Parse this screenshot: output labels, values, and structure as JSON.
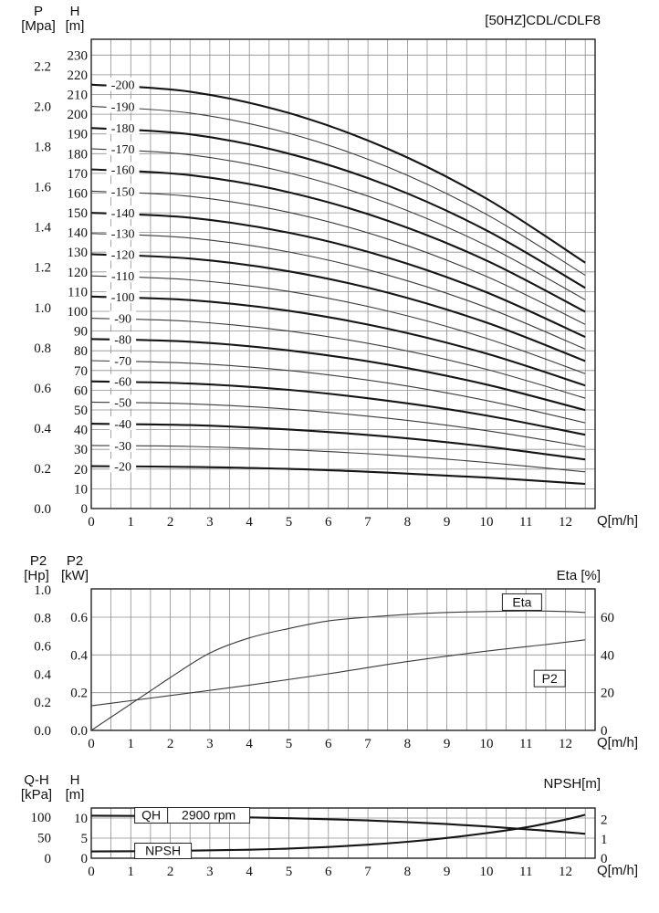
{
  "style": {
    "bg": "#ffffff",
    "ink": "#111111",
    "grid": "#8e8e8e",
    "border": "#222222"
  },
  "chart_data": [
    {
      "id": "main-hq-curves",
      "type": "line",
      "title": "[50HZ]CDL/CDLF8",
      "x_axis": {
        "label": "Q[m/h]",
        "ticks": [
          0,
          1,
          2,
          3,
          4,
          5,
          6,
          7,
          8,
          9,
          10,
          11,
          12
        ],
        "max": 12.75,
        "grid_step": 0.5,
        "grid_max": 12.5
      },
      "left_axis_outer": {
        "name": "P",
        "unit": "[Mpa]",
        "ticks": [
          "0.0",
          "0.2",
          "0.4",
          "0.6",
          "0.8",
          "1.0",
          "1.2",
          "1.4",
          "1.6",
          "1.8",
          "2.0",
          "2.2"
        ],
        "meters_per_unit": 101.97
      },
      "left_axis_inner": {
        "name": "H",
        "unit": "[m]",
        "ticks": [
          0,
          10,
          20,
          30,
          40,
          50,
          60,
          70,
          80,
          90,
          100,
          110,
          120,
          130,
          140,
          150,
          160,
          170,
          180,
          190,
          200,
          210,
          220,
          230
        ],
        "max": 238,
        "grid_step": 10
      },
      "series": [
        {
          "label": "-200",
          "bold": true,
          "points": [
            [
              0,
              215
            ],
            [
              2.5,
              211.4
            ],
            [
              5,
              200.6
            ],
            [
              7.5,
              182.5
            ],
            [
              10,
              157.2
            ],
            [
              12.5,
              124.7
            ]
          ]
        },
        {
          "label": "-190",
          "bold": false,
          "points": [
            [
              0,
              204
            ],
            [
              2.5,
              200.6
            ],
            [
              5,
              190.3
            ],
            [
              7.5,
              173.2
            ],
            [
              10,
              149.2
            ],
            [
              12.5,
              118.3
            ]
          ]
        },
        {
          "label": "-180",
          "bold": true,
          "points": [
            [
              0,
              193
            ],
            [
              2.5,
              189.8
            ],
            [
              5,
              180
            ],
            [
              7.5,
              163.8
            ],
            [
              10,
              141.1
            ],
            [
              12.5,
              111.9
            ]
          ]
        },
        {
          "label": "-170",
          "bold": false,
          "points": [
            [
              0,
              182.5
            ],
            [
              2.5,
              179.4
            ],
            [
              5,
              170.2
            ],
            [
              7.5,
              154.9
            ],
            [
              10,
              133.4
            ],
            [
              12.5,
              105.9
            ]
          ]
        },
        {
          "label": "-160",
          "bold": true,
          "points": [
            [
              0,
              172
            ],
            [
              2.5,
              169.1
            ],
            [
              5,
              160.4
            ],
            [
              7.5,
              146
            ],
            [
              10,
              125.8
            ],
            [
              12.5,
              99.8
            ]
          ]
        },
        {
          "label": "-150",
          "bold": false,
          "points": [
            [
              0,
              161
            ],
            [
              2.5,
              158.3
            ],
            [
              5,
              150.2
            ],
            [
              7.5,
              136.7
            ],
            [
              10,
              117.7
            ],
            [
              12.5,
              93.4
            ]
          ]
        },
        {
          "label": "-140",
          "bold": true,
          "points": [
            [
              0,
              150
            ],
            [
              2.5,
              147.5
            ],
            [
              5,
              139.9
            ],
            [
              7.5,
              127.3
            ],
            [
              10,
              109.7
            ],
            [
              12.5,
              87
            ]
          ]
        },
        {
          "label": "-130",
          "bold": false,
          "points": [
            [
              0,
              139.5
            ],
            [
              2.5,
              137.2
            ],
            [
              5,
              130.1
            ],
            [
              7.5,
              118.4
            ],
            [
              10,
              102
            ],
            [
              12.5,
              80.9
            ]
          ]
        },
        {
          "label": "-120",
          "bold": true,
          "points": [
            [
              0,
              129
            ],
            [
              2.5,
              126.8
            ],
            [
              5,
              120.3
            ],
            [
              7.5,
              109.5
            ],
            [
              10,
              94.3
            ],
            [
              12.5,
              74.8
            ]
          ]
        },
        {
          "label": "-110",
          "bold": false,
          "points": [
            [
              0,
              118
            ],
            [
              2.5,
              116
            ],
            [
              5,
              110.1
            ],
            [
              7.5,
              100.2
            ],
            [
              10,
              86.3
            ],
            [
              12.5,
              68.4
            ]
          ]
        },
        {
          "label": "-100",
          "bold": true,
          "points": [
            [
              0,
              107.5
            ],
            [
              2.5,
              105.7
            ],
            [
              5,
              100.3
            ],
            [
              7.5,
              91.2
            ],
            [
              10,
              78.6
            ],
            [
              12.5,
              62.4
            ]
          ]
        },
        {
          "label": "-90",
          "bold": false,
          "points": [
            [
              0,
              96.5
            ],
            [
              2.5,
              94.9
            ],
            [
              5,
              90
            ],
            [
              7.5,
              81.9
            ],
            [
              10,
              70.6
            ],
            [
              12.5,
              56
            ]
          ]
        },
        {
          "label": "-80",
          "bold": true,
          "points": [
            [
              0,
              86
            ],
            [
              2.5,
              84.6
            ],
            [
              5,
              80.2
            ],
            [
              7.5,
              73
            ],
            [
              10,
              62.9
            ],
            [
              12.5,
              49.9
            ]
          ]
        },
        {
          "label": "-70",
          "bold": false,
          "points": [
            [
              0,
              75
            ],
            [
              2.5,
              73.7
            ],
            [
              5,
              70
            ],
            [
              7.5,
              63.7
            ],
            [
              10,
              54.8
            ],
            [
              12.5,
              43.5
            ]
          ]
        },
        {
          "label": "-60",
          "bold": true,
          "points": [
            [
              0,
              64.5
            ],
            [
              2.5,
              63.4
            ],
            [
              5,
              60.2
            ],
            [
              7.5,
              54.7
            ],
            [
              10,
              47.2
            ],
            [
              12.5,
              37.4
            ]
          ]
        },
        {
          "label": "-50",
          "bold": false,
          "points": [
            [
              0,
              54
            ],
            [
              2.5,
              53.1
            ],
            [
              5,
              50.4
            ],
            [
              7.5,
              45.8
            ],
            [
              10,
              39.5
            ],
            [
              12.5,
              31.3
            ]
          ]
        },
        {
          "label": "-40",
          "bold": true,
          "points": [
            [
              0,
              43
            ],
            [
              2.5,
              42.3
            ],
            [
              5,
              40.1
            ],
            [
              7.5,
              36.5
            ],
            [
              10,
              31.4
            ],
            [
              12.5,
              24.9
            ]
          ]
        },
        {
          "label": "-30",
          "bold": false,
          "points": [
            [
              0,
              32
            ],
            [
              2.5,
              31.5
            ],
            [
              5,
              29.8
            ],
            [
              7.5,
              27.2
            ],
            [
              10,
              23.4
            ],
            [
              12.5,
              18.6
            ]
          ]
        },
        {
          "label": "-20",
          "bold": true,
          "points": [
            [
              0,
              21.5
            ],
            [
              2.5,
              21.1
            ],
            [
              5,
              20.1
            ],
            [
              7.5,
              18.2
            ],
            [
              10,
              15.7
            ],
            [
              12.5,
              12.5
            ]
          ]
        }
      ]
    },
    {
      "id": "power-efficiency",
      "type": "line",
      "x_axis": {
        "label": "Q[m/h]",
        "ticks": [
          0,
          1,
          2,
          3,
          4,
          5,
          6,
          7,
          8,
          9,
          10,
          11,
          12
        ],
        "max": 12.75,
        "grid_step": 0.5,
        "grid_max": 12.5
      },
      "left_axis_outer": {
        "name": "P2",
        "unit": "[Hp]",
        "ticks": [
          "0.0",
          "0.2",
          "0.4",
          "0.6",
          "0.8",
          "1.0"
        ],
        "kw_per_unit": 0.7457
      },
      "left_axis_inner": {
        "name": "P2",
        "unit": "[kW]",
        "ticks": [
          "0.0",
          "0.2",
          "0.4",
          "0.6"
        ],
        "max": 0.75,
        "grid_step": 0.2
      },
      "right_axis": {
        "label": "Eta [%]",
        "ticks": [
          0,
          20,
          40,
          60
        ],
        "kw_per_unit": 0.01
      },
      "series": [
        {
          "label": "Eta",
          "axis": "pct",
          "bold": false,
          "boxed": true,
          "points": [
            [
              0,
              0
            ],
            [
              0.5,
              7
            ],
            [
              1,
              14
            ],
            [
              1.5,
              21
            ],
            [
              2,
              28
            ],
            [
              3,
              41
            ],
            [
              4,
              49
            ],
            [
              5,
              54
            ],
            [
              6,
              58
            ],
            [
              7,
              60
            ],
            [
              8,
              61.5
            ],
            [
              9,
              62.5
            ],
            [
              10,
              63
            ],
            [
              11,
              63.3
            ],
            [
              12,
              63
            ],
            [
              12.5,
              62.5
            ]
          ]
        },
        {
          "label": "P2",
          "axis": "kw",
          "bold": false,
          "boxed": true,
          "points": [
            [
              0,
              0.13
            ],
            [
              2,
              0.185
            ],
            [
              4,
              0.24
            ],
            [
              6,
              0.3
            ],
            [
              8,
              0.365
            ],
            [
              10,
              0.42
            ],
            [
              11.5,
              0.455
            ],
            [
              12.5,
              0.48
            ]
          ]
        }
      ]
    },
    {
      "id": "qh-npsh",
      "type": "line",
      "x_axis": {
        "label": "Q[m/h]",
        "ticks": [
          0,
          1,
          2,
          3,
          4,
          5,
          6,
          7,
          8,
          9,
          10,
          11,
          12
        ],
        "max": 12.75,
        "grid_step": 0.5,
        "grid_max": 12.5
      },
      "left_axis_outer": {
        "name": "Q-H",
        "unit": "[kPa]",
        "ticks": [
          0,
          50,
          100
        ],
        "meters_per_unit": 0.10194
      },
      "left_axis_inner": {
        "name": "H",
        "unit": "[m]",
        "ticks": [
          0,
          5,
          10
        ],
        "max": 12.5,
        "grid_step": 5
      },
      "right_axis": {
        "label": "NPSH[m]",
        "ticks": [
          0,
          1,
          2
        ],
        "max": 2.6
      },
      "labels": {
        "qh": "QH",
        "rpm": "2900 rpm",
        "npsh": "NPSH"
      },
      "series": [
        {
          "label": "QH",
          "axis": "m",
          "bold": true,
          "points": [
            [
              0,
              10.6
            ],
            [
              2,
              10.45
            ],
            [
              4,
              10.15
            ],
            [
              5,
              9.95
            ],
            [
              6,
              9.7
            ],
            [
              7,
              9.4
            ],
            [
              8,
              9
            ],
            [
              9,
              8.5
            ],
            [
              10,
              7.9
            ],
            [
              11,
              7.2
            ],
            [
              12,
              6.5
            ],
            [
              12.5,
              6.1
            ]
          ]
        },
        {
          "label": "NPSH",
          "axis": "npsh",
          "bold": true,
          "points": [
            [
              0,
              0.35
            ],
            [
              2,
              0.38
            ],
            [
              4,
              0.44
            ],
            [
              5,
              0.5
            ],
            [
              6,
              0.58
            ],
            [
              7,
              0.7
            ],
            [
              8,
              0.85
            ],
            [
              9,
              1.05
            ],
            [
              10,
              1.3
            ],
            [
              11,
              1.6
            ],
            [
              12,
              2
            ],
            [
              12.5,
              2.25
            ]
          ]
        }
      ]
    }
  ]
}
